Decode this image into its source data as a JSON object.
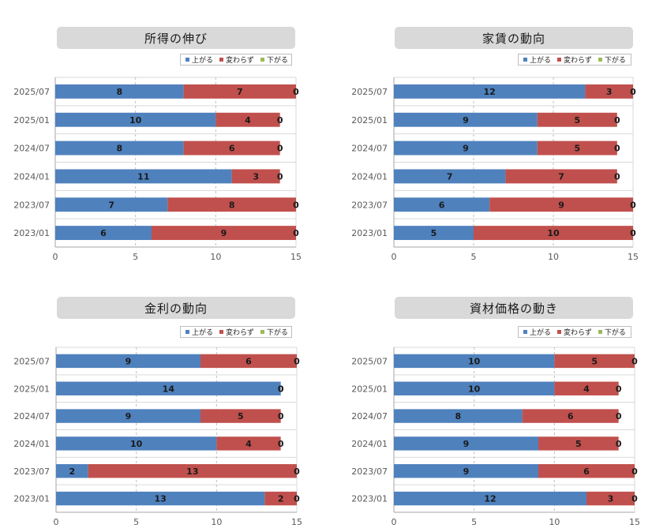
{
  "legend": [
    "上がる",
    "変わらず",
    "下がる"
  ],
  "colors": {
    "series1": "#4f81bd",
    "series2": "#c0504d",
    "series3": "#9bbb59"
  },
  "chart_data": [
    {
      "type": "bar",
      "orientation": "horizontal-stacked",
      "title": "所得の伸び",
      "categories": [
        "2025/07",
        "2025/01",
        "2024/07",
        "2024/01",
        "2023/07",
        "2023/01"
      ],
      "series": [
        {
          "name": "上がる",
          "values": [
            8,
            10,
            8,
            11,
            7,
            6
          ]
        },
        {
          "name": "変わらず",
          "values": [
            7,
            4,
            6,
            3,
            8,
            9
          ]
        },
        {
          "name": "下がる",
          "values": [
            0,
            0,
            0,
            0,
            0,
            0
          ]
        }
      ],
      "xlim": [
        0,
        15
      ],
      "xticks": [
        0,
        5,
        10,
        15
      ],
      "legend_position": "top-right"
    },
    {
      "type": "bar",
      "orientation": "horizontal-stacked",
      "title": "家賃の動向",
      "categories": [
        "2025/07",
        "2025/01",
        "2024/07",
        "2024/01",
        "2023/07",
        "2023/01"
      ],
      "series": [
        {
          "name": "上がる",
          "values": [
            12,
            9,
            9,
            7,
            6,
            5
          ]
        },
        {
          "name": "変わらず",
          "values": [
            3,
            5,
            5,
            7,
            9,
            10
          ]
        },
        {
          "name": "下がる",
          "values": [
            0,
            0,
            0,
            0,
            0,
            0
          ]
        }
      ],
      "xlim": [
        0,
        15
      ],
      "xticks": [
        0,
        5,
        10,
        15
      ],
      "legend_position": "top-right"
    },
    {
      "type": "bar",
      "orientation": "horizontal-stacked",
      "title": "金利の動向",
      "categories": [
        "2025/07",
        "2025/01",
        "2024/07",
        "2024/01",
        "2023/07",
        "2023/01"
      ],
      "series": [
        {
          "name": "上がる",
          "values": [
            9,
            14,
            9,
            10,
            2,
            13
          ]
        },
        {
          "name": "変わらず",
          "values": [
            6,
            0,
            5,
            4,
            13,
            2
          ]
        },
        {
          "name": "下がる",
          "values": [
            0,
            0,
            0,
            0,
            0,
            0
          ]
        }
      ],
      "xlim": [
        0,
        15
      ],
      "xticks": [
        0,
        5,
        10,
        15
      ],
      "legend_position": "top-right"
    },
    {
      "type": "bar",
      "orientation": "horizontal-stacked",
      "title": "資材価格の動き",
      "categories": [
        "2025/07",
        "2025/01",
        "2024/07",
        "2024/01",
        "2023/07",
        "2023/01"
      ],
      "series": [
        {
          "name": "上がる",
          "values": [
            10,
            10,
            8,
            9,
            9,
            12
          ]
        },
        {
          "name": "変わらず",
          "values": [
            5,
            4,
            6,
            5,
            6,
            3
          ]
        },
        {
          "name": "下がる",
          "values": [
            0,
            0,
            0,
            0,
            0,
            0
          ]
        }
      ],
      "xlim": [
        0,
        15
      ],
      "xticks": [
        0,
        5,
        10,
        15
      ],
      "legend_position": "top-right"
    }
  ]
}
